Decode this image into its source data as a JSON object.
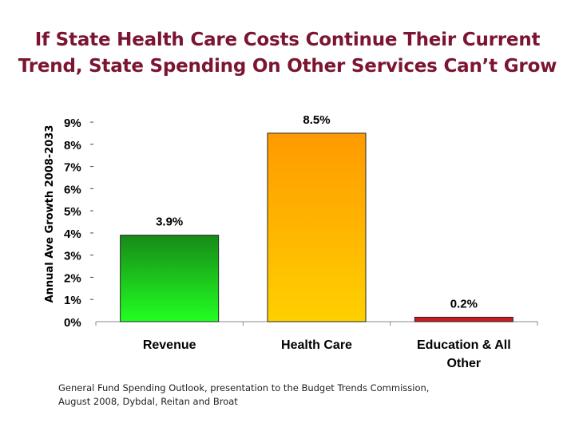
{
  "title_lines": [
    "If State Health Care Costs Continue Their Current",
    "Trend, State Spending On Other Services Can’t Grow"
  ],
  "source_lines": [
    "General Fund Spending Outlook, presentation to the Budget Trends Commission,",
    "August 2008, Dybdal, Reitan and Broat"
  ],
  "colors": {
    "title": "#7b1531",
    "revenue_top": "#178a17",
    "revenue_bottom": "#22ff22",
    "health_top": "#ff9a00",
    "health_bottom": "#ffd000",
    "education": "#cc1a1a"
  },
  "chart_data": {
    "type": "bar",
    "title": "If State Health Care Costs Continue Their Current Trend, State Spending On Other Services Can’t Grow",
    "ylabel": "Annual Ave Growth 2008-2033",
    "xlabel": "",
    "ylim": [
      0,
      9
    ],
    "yticks": [
      0,
      1,
      2,
      3,
      4,
      5,
      6,
      7,
      8,
      9
    ],
    "ytick_labels": [
      "0%",
      "1%",
      "2%",
      "3%",
      "4%",
      "5%",
      "6%",
      "7%",
      "8%",
      "9%"
    ],
    "categories": [
      {
        "lines": [
          "Revenue"
        ]
      },
      {
        "lines": [
          "Health Care"
        ]
      },
      {
        "lines": [
          "Education & All",
          "Other"
        ]
      }
    ],
    "values": [
      3.9,
      8.5,
      0.2
    ],
    "value_labels": [
      "3.9%",
      "8.5%",
      "0.2%"
    ],
    "grid": false
  }
}
